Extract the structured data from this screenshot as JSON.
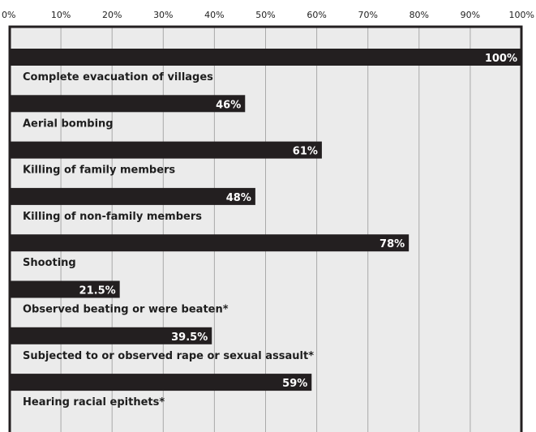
{
  "chart_data": {
    "type": "bar",
    "orientation": "horizontal",
    "categories": [
      "Complete evacuation of villages",
      "Aerial bombing",
      "Killing of family members",
      "Killing of non-family members",
      "Shooting",
      "Observed beating or were beaten*",
      "Subjected to or observed rape or sexual assault*",
      "Hearing racial epithets*"
    ],
    "values": [
      100,
      46,
      61,
      48,
      78,
      21.5,
      39.5,
      59
    ],
    "value_labels": [
      "100%",
      "46%",
      "61%",
      "48%",
      "78%",
      "21.5%",
      "39.5%",
      "59%"
    ],
    "x_ticks": [
      "0%",
      "10%",
      "20%",
      "30%",
      "40%",
      "50%",
      "60%",
      "70%",
      "80%",
      "90%",
      "100%"
    ],
    "xlim": [
      0,
      100
    ],
    "grid": true,
    "colors": {
      "bar": "#231f20",
      "plot_bg": "#ebebeb",
      "grid": "#a9a9a9",
      "frame": "#231f20"
    }
  }
}
